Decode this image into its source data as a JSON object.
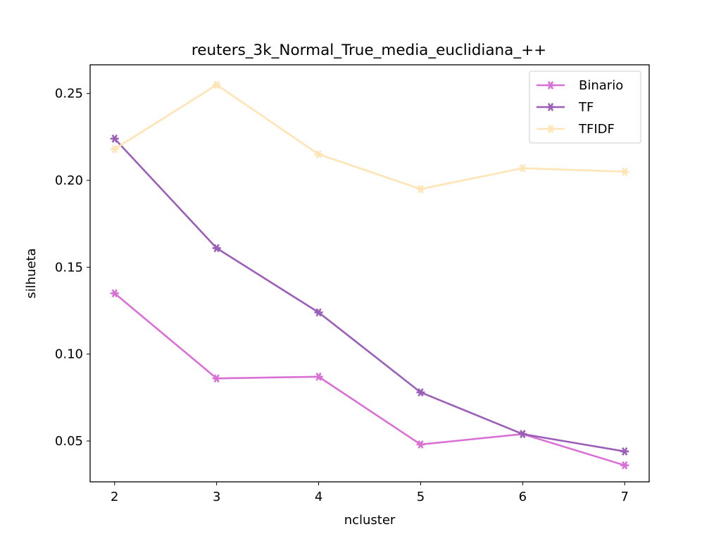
{
  "chart_data": {
    "type": "line",
    "title": "reuters_3k_Normal_True_media_euclidiana_++",
    "xlabel": "ncluster",
    "ylabel": "silhueta",
    "x": [
      2,
      3,
      4,
      5,
      6,
      7
    ],
    "xticks": [
      "2",
      "3",
      "4",
      "5",
      "6",
      "7"
    ],
    "yticks": [
      "0.05",
      "0.10",
      "0.15",
      "0.20",
      "0.25"
    ],
    "xlim": [
      1.76,
      7.24
    ],
    "ylim": [
      0.0265,
      0.2665
    ],
    "grid": false,
    "legend_position": "top-right",
    "marker": "star-cross",
    "series": [
      {
        "name": "Binario",
        "color": "#da70d6",
        "values": [
          0.135,
          0.086,
          0.087,
          0.048,
          0.054,
          0.036
        ]
      },
      {
        "name": "TF",
        "color": "#9b5fb8",
        "values": [
          0.224,
          0.161,
          0.124,
          0.078,
          0.054,
          0.044
        ]
      },
      {
        "name": "TFIDF",
        "color": "#ffe4b5",
        "values": [
          0.218,
          0.255,
          0.215,
          0.195,
          0.207,
          0.205
        ]
      }
    ]
  }
}
